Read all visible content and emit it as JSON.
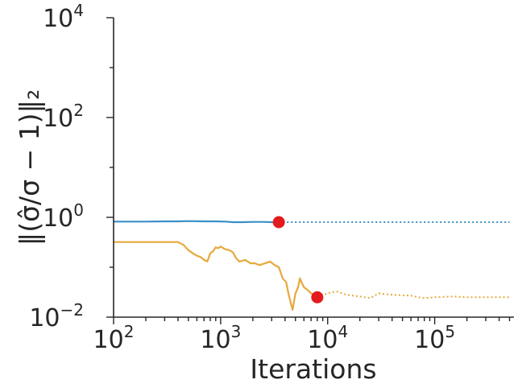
{
  "chart_data": {
    "type": "line",
    "title": "",
    "xlabel": "Iterations",
    "ylabel": "‖(σ̂/σ − 1)‖₂",
    "x_scale": "log",
    "y_scale": "log",
    "xlim": [
      100,
      550000
    ],
    "ylim": [
      0.01,
      10000
    ],
    "grid": false,
    "legend": "none",
    "x_ticks": [
      {
        "base": "10",
        "exp": "2",
        "value": 100
      },
      {
        "base": "10",
        "exp": "3",
        "value": 1000
      },
      {
        "base": "10",
        "exp": "4",
        "value": 10000
      },
      {
        "base": "10",
        "exp": "5",
        "value": 100000
      }
    ],
    "y_ticks": [
      {
        "base": "10",
        "exp": "4",
        "value": 10000
      },
      {
        "base": "10",
        "exp": "2",
        "value": 100
      },
      {
        "base": "10",
        "exp": "0",
        "value": 1
      },
      {
        "base": "10",
        "exp": "−2",
        "value": 0.01
      }
    ],
    "series": [
      {
        "color": "#3a8fc8",
        "style": "solid",
        "x": [
          100,
          150,
          200,
          300,
          400,
          500,
          700,
          900,
          1100,
          1300,
          1600,
          2000,
          2500,
          3000,
          3500
        ],
        "y": [
          0.82,
          0.82,
          0.82,
          0.83,
          0.83,
          0.84,
          0.83,
          0.83,
          0.82,
          0.8,
          0.8,
          0.81,
          0.81,
          0.8,
          0.8
        ]
      },
      {
        "color": "#3a8fc8",
        "style": "dotted",
        "x": [
          3500,
          10000,
          30000,
          100000,
          300000,
          500000
        ],
        "y": [
          0.8,
          0.8,
          0.8,
          0.8,
          0.8,
          0.8
        ]
      },
      {
        "color": "#e6a93c",
        "style": "solid",
        "x": [
          100,
          200,
          300,
          400,
          450,
          500,
          550,
          600,
          650,
          700,
          750,
          800,
          850,
          900,
          950,
          1000,
          1100,
          1200,
          1300,
          1400,
          1500,
          1700,
          1900,
          2100,
          2300,
          2600,
          2900,
          3200,
          3500,
          3800,
          4100,
          4300,
          4500,
          4700,
          5000,
          5300,
          5500,
          5700,
          6000,
          6500,
          7000,
          7500,
          8000
        ],
        "y": [
          0.32,
          0.32,
          0.32,
          0.32,
          0.28,
          0.22,
          0.19,
          0.17,
          0.16,
          0.14,
          0.13,
          0.19,
          0.21,
          0.25,
          0.24,
          0.26,
          0.23,
          0.22,
          0.2,
          0.15,
          0.13,
          0.14,
          0.12,
          0.12,
          0.11,
          0.12,
          0.13,
          0.11,
          0.1,
          0.06,
          0.05,
          0.03,
          0.02,
          0.014,
          0.03,
          0.04,
          0.06,
          0.05,
          0.04,
          0.035,
          0.03,
          0.028,
          0.025
        ]
      },
      {
        "color": "#e6a93c",
        "style": "dotted",
        "x": [
          8000,
          10000,
          12000,
          15000,
          20000,
          25000,
          30000,
          40000,
          60000,
          70000,
          80000,
          100000,
          150000,
          200000,
          300000,
          400000,
          500000
        ],
        "y": [
          0.025,
          0.03,
          0.033,
          0.028,
          0.026,
          0.024,
          0.03,
          0.028,
          0.027,
          0.025,
          0.024,
          0.025,
          0.026,
          0.025,
          0.025,
          0.025,
          0.025
        ]
      }
    ],
    "markers": [
      {
        "x": 3500,
        "y": 0.8,
        "color": "#e41a1c"
      },
      {
        "x": 8000,
        "y": 0.025,
        "color": "#e41a1c"
      }
    ]
  }
}
